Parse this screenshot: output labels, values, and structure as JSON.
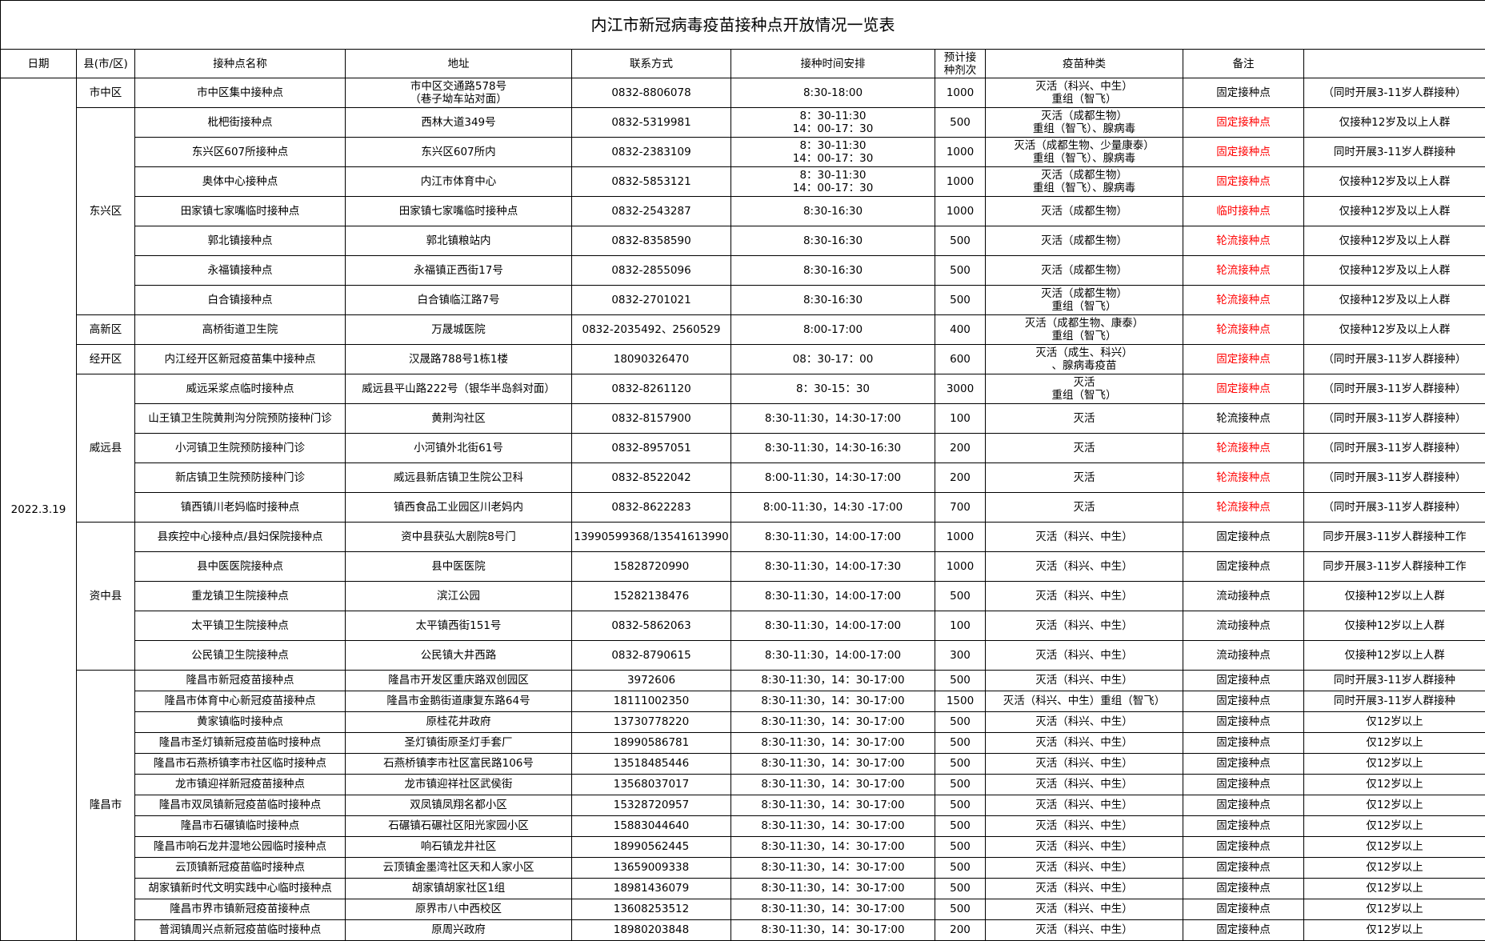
{
  "title": "内江市新冠病毒疫苗接种点开放情况一览表",
  "headers": [
    "日期",
    "县(市/区)",
    "接种点名称",
    "地址",
    "联系方式",
    "接种时间安排",
    "预计接\n种剂次",
    "疫苗种类",
    "备注"
  ],
  "date": "2022.3.19",
  "groups": [
    {
      "district": "市中区",
      "rows": [
        {
          "name": "市中区集中接种点",
          "address": "市中区交通路578号\n（巷子坳车站对面）",
          "phone": "0832-8806078",
          "time": "8:30-18:00",
          "doses": 1000,
          "vaccine": "灭活（科兴、中生）\n重组（智飞）",
          "type": "固定接种点",
          "type_color": "#000000",
          "note": "（同时开展3-11岁人群接种）"
        }
      ]
    },
    {
      "district": "东兴区",
      "rows": [
        {
          "name": "枇杷街接种点",
          "address": "西林大道349号",
          "phone": "0832-5319981",
          "time": "8：30-11:30\n14：00-17：30",
          "doses": 500,
          "vaccine": "灭活（成都生物）\n重组（智飞）、腺病毒",
          "type": "固定接种点",
          "type_color": "#ff0000",
          "note": "仅接种12岁及以上人群"
        },
        {
          "name": "东兴区607所接种点",
          "address": "东兴区607所内",
          "phone": "0832-2383109",
          "time": "8：30-11:30\n14：00-17：30",
          "doses": 1000,
          "vaccine": "灭活（成都生物、少量康泰）\n重组（智飞）、腺病毒",
          "type": "固定接种点",
          "type_color": "#ff0000",
          "note": "同时开展3-11岁人群接种"
        },
        {
          "name": "奥体中心接种点",
          "address": "内江市体育中心",
          "phone": "0832-5853121",
          "time": "8：30-11:30\n14：00-17：30",
          "doses": 1000,
          "vaccine": "灭活（成都生物）\n重组（智飞）、腺病毒",
          "type": "固定接种点",
          "type_color": "#ff0000",
          "note": "仅接种12岁及以上人群"
        },
        {
          "name": "田家镇七家嘴临时接种点",
          "address": "田家镇七家嘴临时接种点",
          "phone": "0832-2543287",
          "time": "8:30-16:30",
          "doses": 1000,
          "vaccine": "灭活（成都生物）",
          "type": "临时接种点",
          "type_color": "#ff0000",
          "note": "仅接种12岁及以上人群"
        },
        {
          "name": "郭北镇接种点",
          "address": "郭北镇粮站内",
          "phone": "0832-8358590",
          "time": "8:30-16:30",
          "doses": 500,
          "vaccine": "灭活（成都生物）",
          "type": "轮流接种点",
          "type_color": "#ff0000",
          "note": "仅接种12岁及以上人群"
        },
        {
          "name": "永福镇接种点",
          "address": "永福镇正西街17号",
          "phone": "0832-2855096",
          "time": "8:30-16:30",
          "doses": 500,
          "vaccine": "灭活（成都生物）",
          "type": "轮流接种点",
          "type_color": "#ff0000",
          "note": "仅接种12岁及以上人群"
        },
        {
          "name": "白合镇接种点",
          "address": "白合镇临江路7号",
          "phone": "0832-2701021",
          "time": "8:30-16:30",
          "doses": 500,
          "vaccine": "灭活（成都生物）\n重组（智飞）",
          "type": "轮流接种点",
          "type_color": "#ff0000",
          "note": "仅接种12岁及以上人群"
        }
      ]
    },
    {
      "district": "高新区",
      "rows": [
        {
          "name": "高桥街道卫生院",
          "address": "万晟城医院",
          "phone": "0832-2035492、2560529",
          "time": "8:00-17:00",
          "doses": 400,
          "vaccine": "灭活（成都生物、康泰）\n重组（智飞）",
          "type": "轮流接种点",
          "type_color": "#ff0000",
          "note": "仅接种12岁及以上人群"
        }
      ]
    },
    {
      "district": "经开区",
      "rows": [
        {
          "name": "内江经开区新冠疫苗集中接种点",
          "address": "汉晟路788号1栋1楼",
          "phone": "18090326470",
          "time": "08：30-17：00",
          "doses": 600,
          "vaccine": "灭活（成生、科兴）\n、腺病毒疫苗",
          "type": "固定接种点",
          "type_color": "#ff0000",
          "note": "（同时开展3-11岁人群接种）"
        }
      ]
    },
    {
      "district": "威远县",
      "rows": [
        {
          "name": "威远采浆点临时接种点",
          "address": "威远县平山路222号（银华半岛斜对面）",
          "phone": "0832-8261120",
          "time": "8：30-15：30",
          "doses": 3000,
          "vaccine": "灭活\n重组（智飞）",
          "type": "固定接种点",
          "type_color": "#ff0000",
          "note": "（同时开展3-11岁人群接种）"
        },
        {
          "name": "山王镇卫生院黄荆沟分院预防接种门诊",
          "address": "黄荆沟社区",
          "phone": "0832-8157900",
          "time": "8:30-11:30，14:30-17:00",
          "doses": 100,
          "vaccine": "灭活",
          "type": "轮流接种点",
          "type_color": "#000000",
          "note": "（同时开展3-11岁人群接种）"
        },
        {
          "name": "小河镇卫生院预防接种门诊",
          "address": "小河镇外北街61号",
          "phone": "0832-8957051",
          "time": "8:30-11:30，14:30-16:30",
          "doses": 200,
          "vaccine": "灭活",
          "type": "轮流接种点",
          "type_color": "#ff0000",
          "note": "（同时开展3-11岁人群接种）"
        },
        {
          "name": "新店镇卫生院预防接种门诊",
          "address": "威远县新店镇卫生院公卫科",
          "phone": "0832-8522042",
          "time": "8:00-11:30，14:30-17:00",
          "doses": 200,
          "vaccine": "灭活",
          "type": "轮流接种点",
          "type_color": "#ff0000",
          "note": "（同时开展3-11岁人群接种）"
        },
        {
          "name": "镇西镇川老妈临时接种点",
          "address": "镇西食品工业园区川老妈内",
          "phone": "0832-8622283",
          "time": "8:00-11:30，14:30 -17:00",
          "doses": 700,
          "vaccine": "灭活",
          "type": "轮流接种点",
          "type_color": "#ff0000",
          "note": "（同时开展3-11岁人群接种）"
        }
      ]
    },
    {
      "district": "资中县",
      "rows": [
        {
          "name": "县疾控中心接种点/县妇保院接种点",
          "address": "资中县获弘大剧院8号门",
          "phone": "13990599368/13541613990",
          "time": "8:30-11:30，14:00-17:00",
          "doses": 1000,
          "vaccine": "灭活（科兴、中生）",
          "type": "固定接种点",
          "type_color": "#000000",
          "note": "同步开展3-11岁人群接种工作"
        },
        {
          "name": "县中医医院接种点",
          "address": "县中医医院",
          "phone": "15828720990",
          "time": "8:30-11:30，14:00-17:30",
          "doses": 1000,
          "vaccine": "灭活（科兴、中生）",
          "type": "固定接种点",
          "type_color": "#000000",
          "note": "同步开展3-11岁人群接种工作"
        },
        {
          "name": "重龙镇卫生院接种点",
          "address": "滨江公园",
          "phone": "15282138476",
          "time": "8:30-11:30，14:00-17:00",
          "doses": 500,
          "vaccine": "灭活（科兴、中生）",
          "type": "流动接种点",
          "type_color": "#000000",
          "note": "仅接种12岁以上人群"
        },
        {
          "name": "太平镇卫生院接种点",
          "address": "太平镇西街151号",
          "phone": "0832-5862063",
          "time": "8:30-11:30，14:00-17:00",
          "doses": 100,
          "vaccine": "灭活（科兴、中生）",
          "type": "流动接种点",
          "type_color": "#000000",
          "note": "仅接种12岁以上人群"
        },
        {
          "name": "公民镇卫生院接种点",
          "address": "公民镇大井西路",
          "phone": "0832-8790615",
          "time": "8:30-11:30，14:00-17:00",
          "doses": 300,
          "vaccine": "灭活（科兴、中生）",
          "type": "流动接种点",
          "type_color": "#000000",
          "note": "仅接种12岁以上人群"
        }
      ]
    },
    {
      "district": "隆昌市",
      "rows": [
        {
          "name": "隆昌市新冠疫苗接种点",
          "address": "隆昌市开发区重庆路双创园区",
          "phone": "3972606",
          "time": "8:30-11:30，14：30-17:00",
          "doses": 500,
          "vaccine": "灭活（科兴、中生）",
          "type": "固定接种点",
          "type_color": "#000000",
          "note": "同时开展3-11岁人群接种"
        },
        {
          "name": "隆昌市体育中心新冠疫苗接种点",
          "address": "隆昌市金鹅街道康复东路64号",
          "phone": "18111002350",
          "time": "8:30-11:30，14：30-17:00",
          "doses": 1500,
          "vaccine": "灭活（科兴、中生）重组（智飞）",
          "type": "固定接种点",
          "type_color": "#000000",
          "note": "同时开展3-11岁人群接种"
        },
        {
          "name": "黄家镇临时接种点",
          "address": "原桂花井政府",
          "phone": "13730778220",
          "time": "8:30-11:30，14：30-17:00",
          "doses": 500,
          "vaccine": "灭活（科兴、中生）",
          "type": "固定接种点",
          "type_color": "#000000",
          "note": "仅12岁以上"
        },
        {
          "name": "隆昌市圣灯镇新冠疫苗临时接种点",
          "address": "圣灯镇街原圣灯手套厂",
          "phone": "18990586781",
          "time": "8:30-11:30，14：30-17:00",
          "doses": 500,
          "vaccine": "灭活（科兴、中生）",
          "type": "固定接种点",
          "type_color": "#000000",
          "note": "仅12岁以上"
        },
        {
          "name": "隆昌市石燕桥镇李市社区临时接种点",
          "address": "石燕桥镇李市社区富民路106号",
          "phone": "13518485446",
          "time": "8:30-11:30，14：30-17:00",
          "doses": 500,
          "vaccine": "灭活（科兴、中生）",
          "type": "固定接种点",
          "type_color": "#000000",
          "note": "仅12岁以上"
        },
        {
          "name": "龙市镇迎祥新冠疫苗接种点",
          "address": "龙市镇迎祥社区武侯街",
          "phone": "13568037017",
          "time": "8:30-11:30，14：30-17:00",
          "doses": 500,
          "vaccine": "灭活（科兴、中生）",
          "type": "固定接种点",
          "type_color": "#000000",
          "note": "仅12岁以上"
        },
        {
          "name": "隆昌市双凤镇新冠疫苗临时接种点",
          "address": "双凤镇凤翔名都小区",
          "phone": "15328720957",
          "time": "8:30-11:30，14：30-17:00",
          "doses": 500,
          "vaccine": "灭活（科兴、中生）",
          "type": "固定接种点",
          "type_color": "#000000",
          "note": "仅12岁以上"
        },
        {
          "name": "隆昌市石碾镇临时接种点",
          "address": "石碾镇石碾社区阳光家园小区",
          "phone": "15883044640",
          "time": "8:30-11:30，14：30-17:00",
          "doses": 500,
          "vaccine": "灭活（科兴、中生）",
          "type": "固定接种点",
          "type_color": "#000000",
          "note": "仅12岁以上"
        },
        {
          "name": "隆昌市响石龙井湿地公园临时接种点",
          "address": "响石镇龙井社区",
          "phone": "18990562445",
          "time": "8:30-11:30，14：30-17:00",
          "doses": 500,
          "vaccine": "灭活（科兴、中生）",
          "type": "固定接种点",
          "type_color": "#000000",
          "note": "仅12岁以上"
        },
        {
          "name": "云顶镇新冠疫苗临时接种点",
          "address": "云顶镇金墨湾社区天和人家小区",
          "phone": "13659009338",
          "time": "8:30-11:30，14：30-17:00",
          "doses": 500,
          "vaccine": "灭活（科兴、中生）",
          "type": "固定接种点",
          "type_color": "#000000",
          "note": "仅12岁以上"
        },
        {
          "name": "胡家镇新时代文明实践中心临时接种点",
          "address": "胡家镇胡家社区1组",
          "phone": "18981436079",
          "time": "8:30-11:30，14：30-17:00",
          "doses": 500,
          "vaccine": "灭活（科兴、中生）",
          "type": "固定接种点",
          "type_color": "#000000",
          "note": "仅12岁以上"
        },
        {
          "name": "隆昌市界市镇新冠疫苗接种点",
          "address": "原界市八中西校区",
          "phone": "13608253512",
          "time": "8:30-11:30，14：30-17:00",
          "doses": 500,
          "vaccine": "灭活（科兴、中生）",
          "type": "固定接种点",
          "type_color": "#000000",
          "note": "仅12岁以上"
        },
        {
          "name": "普润镇周兴点新冠疫苗临时接种点",
          "address": "原周兴政府",
          "phone": "18980203848",
          "time": "8:30-11:30，14：30-17:00",
          "doses": 200,
          "vaccine": "灭活（科兴、中生）",
          "type": "固定接种点",
          "type_color": "#000000",
          "note": "仅12岁以上"
        }
      ]
    }
  ]
}
